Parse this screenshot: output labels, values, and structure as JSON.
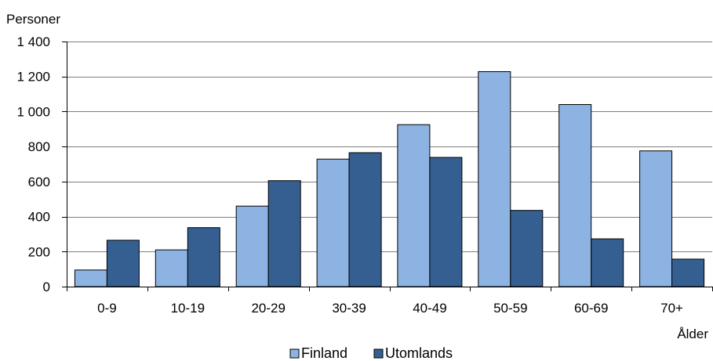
{
  "chart_data": {
    "type": "bar",
    "ylabel": "Personer",
    "xlabel": "Ålder",
    "categories": [
      "0-9",
      "10-19",
      "20-29",
      "30-39",
      "40-49",
      "50-59",
      "60-69",
      "70+"
    ],
    "series": [
      {
        "name": "Finland",
        "values": [
          95,
          210,
          460,
          728,
          925,
          1228,
          1040,
          775
        ],
        "color": "#8db3e2"
      },
      {
        "name": "Utomlands",
        "values": [
          265,
          337,
          605,
          765,
          738,
          435,
          273,
          157
        ],
        "color": "#365f91"
      }
    ],
    "ylim": [
      0,
      1400
    ],
    "yticks": [
      0,
      200,
      400,
      600,
      800,
      1000,
      1200,
      1400
    ],
    "ytick_labels": [
      "0",
      "200",
      "400",
      "600",
      "800",
      "1 000",
      "1 200",
      "1 400"
    ],
    "grid": true,
    "legend_position": "bottom"
  }
}
